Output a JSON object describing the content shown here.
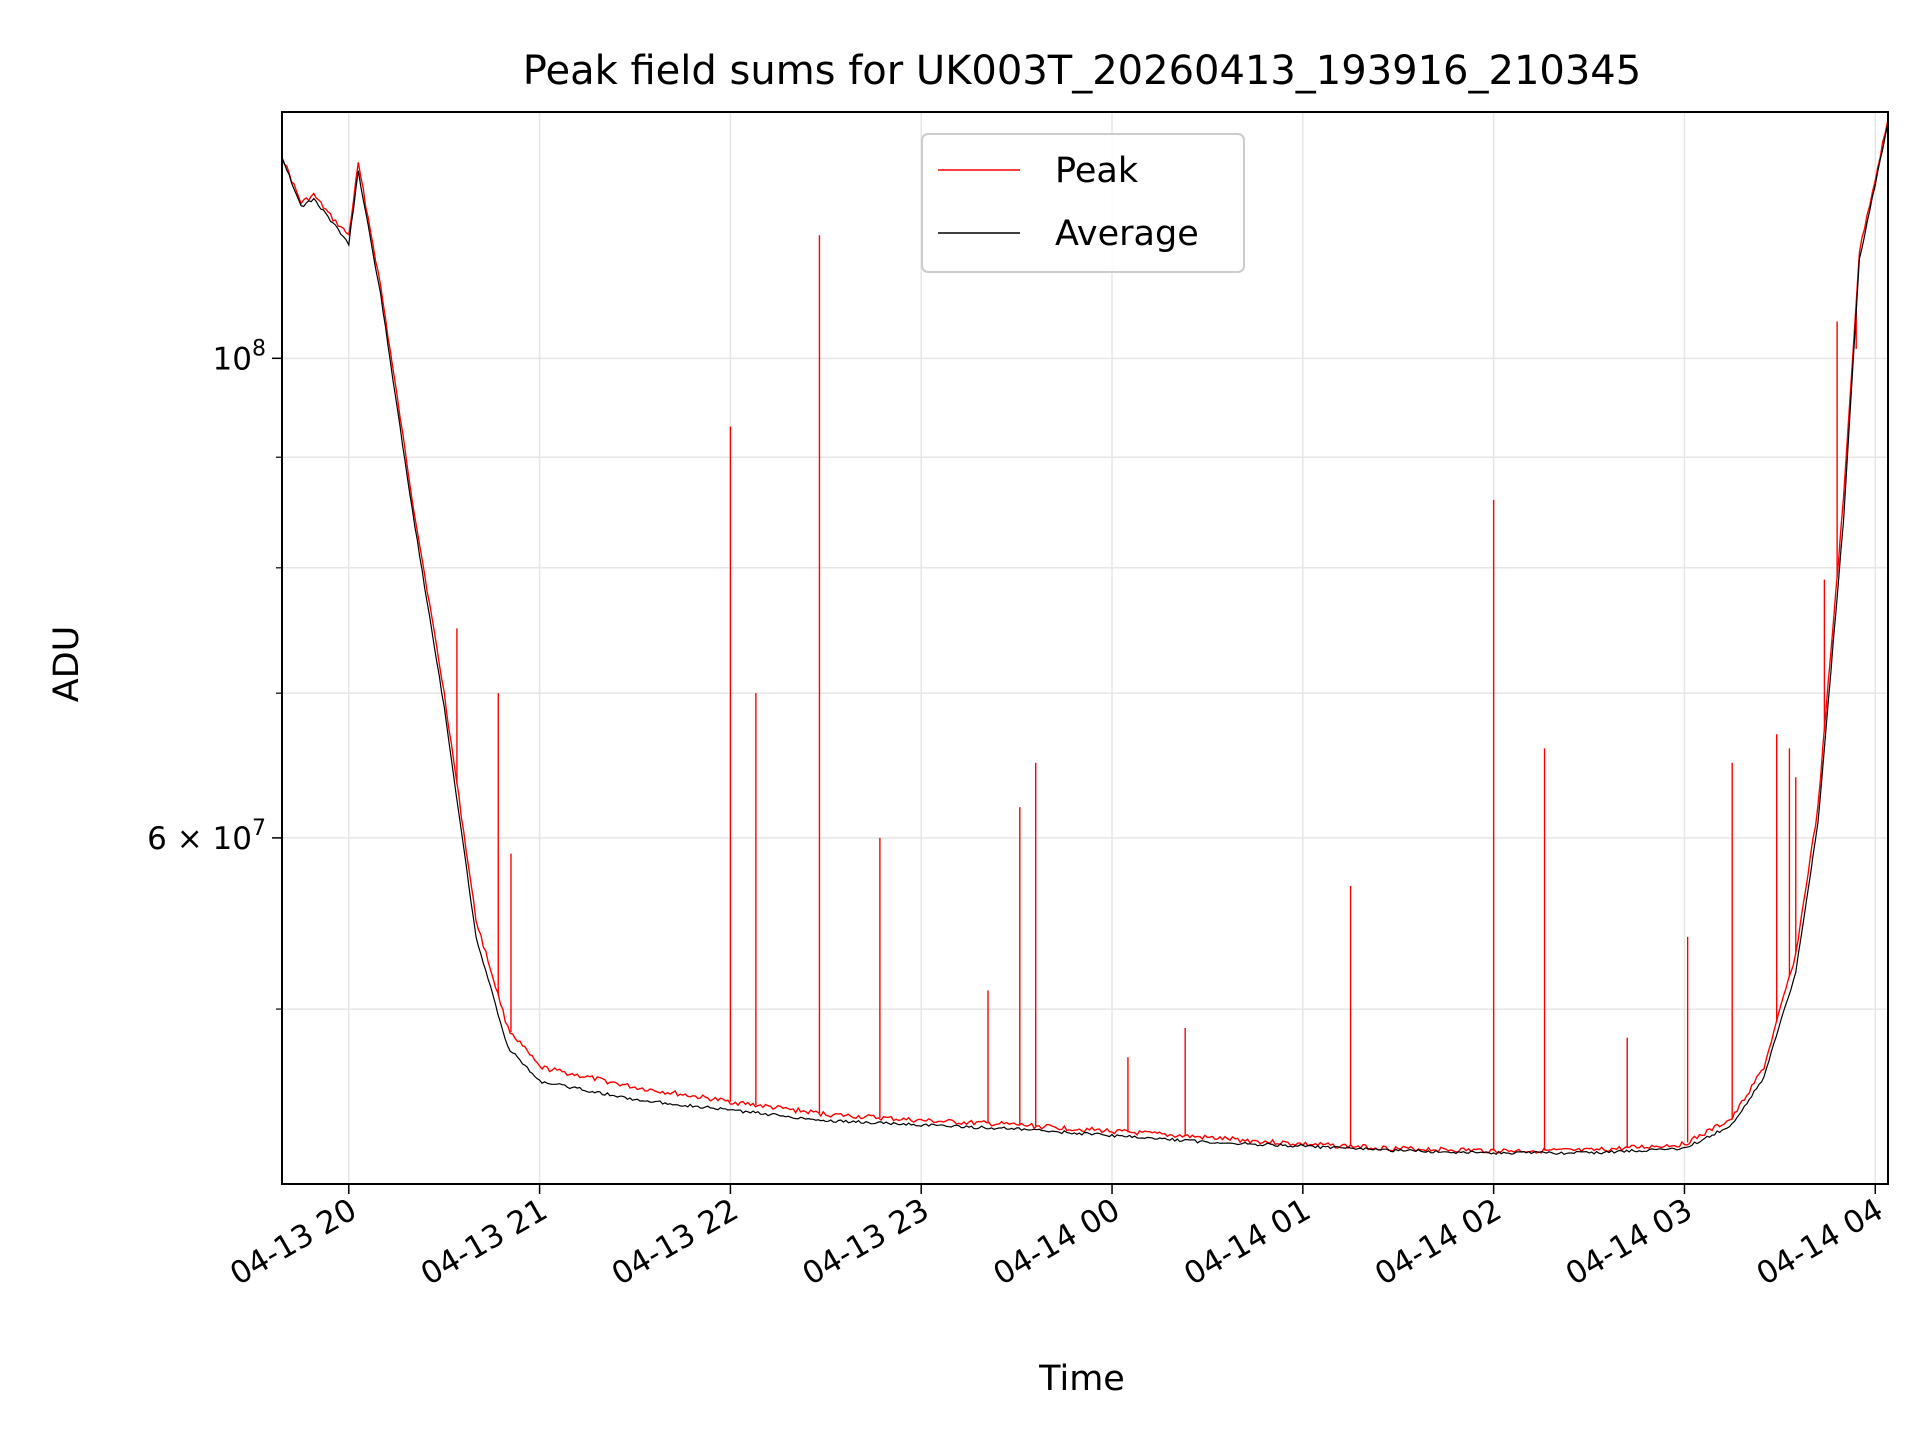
{
  "chart_data": {
    "type": "line",
    "title": "Peak field sums for UK003T_20260413_193916_210345",
    "xlabel": "Time",
    "ylabel": "ADU",
    "y_scale": "log",
    "grid": true,
    "legend_placement": "upper-center",
    "x_range": [
      "2026-04-13 19:39",
      "2026-04-14 04:04"
    ],
    "y_range": [
      41500000,
      130000000
    ],
    "x_ticks": [
      "04-13 20",
      "04-13 21",
      "04-13 22",
      "04-13 23",
      "04-14 00",
      "04-14 01",
      "04-14 02",
      "04-14 03",
      "04-14 04"
    ],
    "y_major_ticks": [
      {
        "value": 100000000,
        "base": "10",
        "exp": "8"
      },
      {
        "value": 60000000,
        "base": "6 × 10",
        "exp": "7"
      }
    ],
    "y_minor_ticks": [
      50000000,
      70000000,
      80000000,
      90000000
    ],
    "series": [
      {
        "name": "Peak",
        "color": "#ff0000",
        "points": [
          [
            "2026-04-13 19:39",
            124000000
          ],
          [
            "2026-04-13 19:45",
            118000000
          ],
          [
            "2026-04-13 19:49",
            119000000
          ],
          [
            "2026-04-13 19:55",
            116000000
          ],
          [
            "2026-04-13 20:00",
            114000000
          ],
          [
            "2026-04-13 20:03",
            123000000
          ],
          [
            "2026-04-13 20:10",
            108000000
          ],
          [
            "2026-04-13 20:20",
            86000000
          ],
          [
            "2026-04-13 20:30",
            70000000
          ],
          [
            "2026-04-13 20:40",
            55000000
          ],
          [
            "2026-04-13 20:50",
            49000000
          ],
          [
            "2026-04-13 21:00",
            47000000
          ],
          [
            "2026-04-13 21:30",
            46000000
          ],
          [
            "2026-04-13 22:00",
            45300000
          ],
          [
            "2026-04-13 22:30",
            44700000
          ],
          [
            "2026-04-13 23:00",
            44400000
          ],
          [
            "2026-04-13 23:30",
            44200000
          ],
          [
            "2026-04-14 00:00",
            43900000
          ],
          [
            "2026-04-14 00:30",
            43600000
          ],
          [
            "2026-04-14 01:00",
            43300000
          ],
          [
            "2026-04-14 01:30",
            43100000
          ],
          [
            "2026-04-14 02:00",
            43000000
          ],
          [
            "2026-04-14 02:30",
            43000000
          ],
          [
            "2026-04-14 03:00",
            43300000
          ],
          [
            "2026-04-14 03:15",
            44500000
          ],
          [
            "2026-04-14 03:25",
            47000000
          ],
          [
            "2026-04-14 03:35",
            53000000
          ],
          [
            "2026-04-14 03:42",
            62000000
          ],
          [
            "2026-04-14 03:50",
            86000000
          ],
          [
            "2026-04-14 03:55",
            112000000
          ],
          [
            "2026-04-14 04:04",
            129000000
          ]
        ],
        "spikes": [
          [
            "2026-04-13 20:34",
            75000000
          ],
          [
            "2026-04-13 20:47",
            70000000
          ],
          [
            "2026-04-13 20:51",
            59000000
          ],
          [
            "2026-04-13 22:00",
            93000000
          ],
          [
            "2026-04-13 22:08",
            70000000
          ],
          [
            "2026-04-13 22:28",
            114000000
          ],
          [
            "2026-04-13 22:47",
            60000000
          ],
          [
            "2026-04-13 23:21",
            51000000
          ],
          [
            "2026-04-13 23:31",
            62000000
          ],
          [
            "2026-04-13 23:36",
            65000000
          ],
          [
            "2026-04-14 00:05",
            47500000
          ],
          [
            "2026-04-14 00:23",
            49000000
          ],
          [
            "2026-04-14 01:15",
            57000000
          ],
          [
            "2026-04-14 02:00",
            86000000
          ],
          [
            "2026-04-14 02:16",
            66000000
          ],
          [
            "2026-04-14 02:42",
            48500000
          ],
          [
            "2026-04-14 03:01",
            54000000
          ],
          [
            "2026-04-14 03:15",
            65000000
          ],
          [
            "2026-04-14 03:29",
            67000000
          ],
          [
            "2026-04-14 03:33",
            66000000
          ],
          [
            "2026-04-14 03:35",
            64000000
          ],
          [
            "2026-04-14 03:44",
            79000000
          ],
          [
            "2026-04-14 03:48",
            104000000
          ],
          [
            "2026-04-14 03:54",
            101000000
          ]
        ]
      },
      {
        "name": "Average",
        "color": "#000000",
        "points": [
          [
            "2026-04-13 19:39",
            124000000
          ],
          [
            "2026-04-13 19:45",
            117500000
          ],
          [
            "2026-04-13 19:49",
            118500000
          ],
          [
            "2026-04-13 19:55",
            115500000
          ],
          [
            "2026-04-13 20:00",
            113000000
          ],
          [
            "2026-04-13 20:03",
            122000000
          ],
          [
            "2026-04-13 20:10",
            107000000
          ],
          [
            "2026-04-13 20:20",
            85000000
          ],
          [
            "2026-04-13 20:30",
            69000000
          ],
          [
            "2026-04-13 20:40",
            54000000
          ],
          [
            "2026-04-13 20:50",
            48000000
          ],
          [
            "2026-04-13 21:00",
            46300000
          ],
          [
            "2026-04-13 21:30",
            45400000
          ],
          [
            "2026-04-13 22:00",
            44900000
          ],
          [
            "2026-04-13 22:30",
            44400000
          ],
          [
            "2026-04-13 23:00",
            44200000
          ],
          [
            "2026-04-13 23:30",
            44000000
          ],
          [
            "2026-04-14 00:00",
            43700000
          ],
          [
            "2026-04-14 00:30",
            43400000
          ],
          [
            "2026-04-14 01:00",
            43200000
          ],
          [
            "2026-04-14 01:30",
            43000000
          ],
          [
            "2026-04-14 02:00",
            42900000
          ],
          [
            "2026-04-14 02:30",
            42900000
          ],
          [
            "2026-04-14 03:00",
            43100000
          ],
          [
            "2026-04-14 03:15",
            44200000
          ],
          [
            "2026-04-14 03:25",
            46500000
          ],
          [
            "2026-04-14 03:35",
            52000000
          ],
          [
            "2026-04-14 03:42",
            61000000
          ],
          [
            "2026-04-14 03:50",
            84000000
          ],
          [
            "2026-04-14 03:55",
            111000000
          ],
          [
            "2026-04-14 04:04",
            128500000
          ]
        ]
      }
    ]
  }
}
